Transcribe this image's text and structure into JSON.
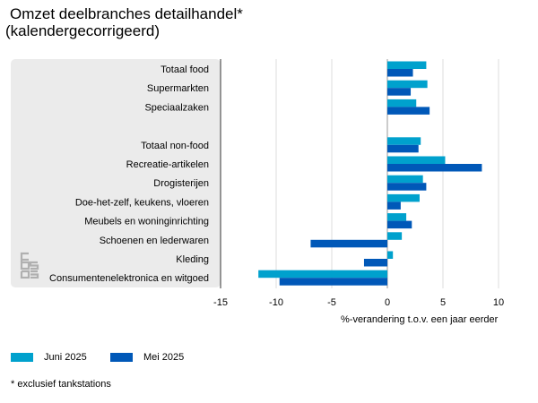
{
  "chart_data": {
    "type": "bar",
    "orientation": "horizontal",
    "title": "Omzet deelbranches detailhandel*",
    "subtitle": "(kalendergecorrigeerd)",
    "xlabel": "%-verandering t.o.v. een jaar eerder",
    "ylabel": "",
    "xlim": [
      -15,
      10
    ],
    "xticks": [
      -15,
      -10,
      -5,
      0,
      5,
      10
    ],
    "grid": true,
    "legend_position": "bottom-left",
    "categories": [
      "Totaal food",
      "Supermarkten",
      "Speciaalzaken",
      "",
      "Totaal non-food",
      "Recreatie-artikelen",
      "Drogisterijen",
      "Doe-het-zelf, keukens, vloeren",
      "Meubels en woninginrichting",
      "Schoenen en lederwaren",
      "Kleding",
      "Consumentenelektronica en witgoed"
    ],
    "series": [
      {
        "name": "Juni 2025",
        "color": "#00a1cd",
        "values": [
          3.5,
          3.6,
          2.6,
          null,
          3.0,
          5.2,
          3.2,
          2.9,
          1.7,
          1.3,
          0.5,
          -11.6
        ]
      },
      {
        "name": "Mei 2025",
        "color": "#0058b8",
        "values": [
          2.3,
          2.1,
          3.8,
          null,
          2.8,
          8.5,
          3.5,
          1.2,
          2.2,
          -6.9,
          -2.1,
          -9.7
        ]
      }
    ],
    "footnote": "* exclusief tankstations"
  }
}
